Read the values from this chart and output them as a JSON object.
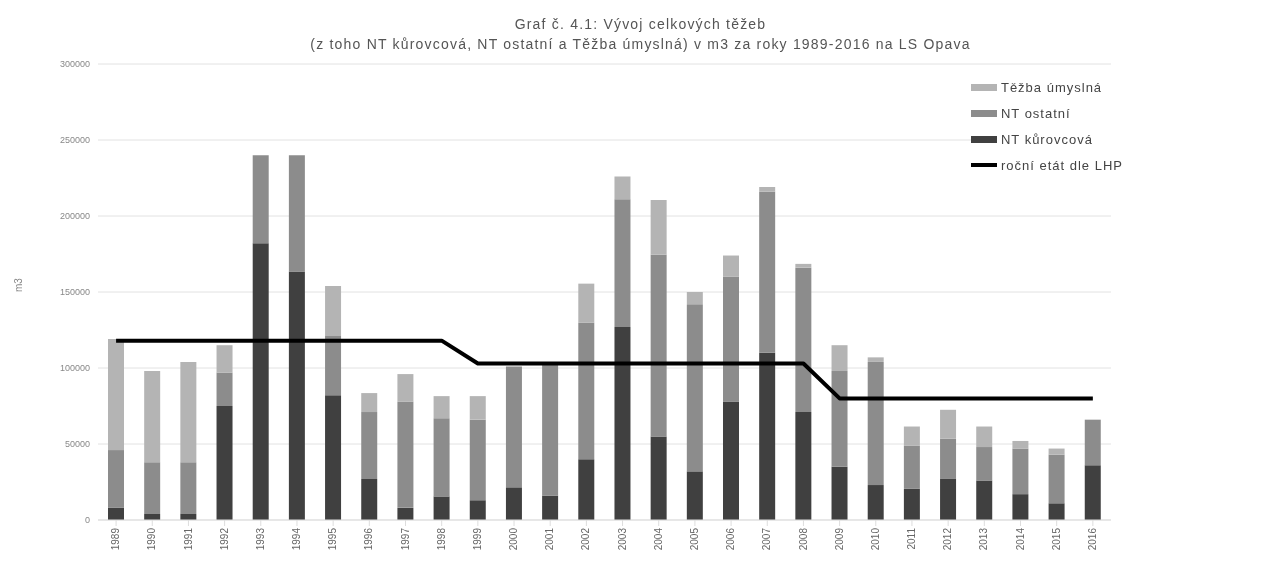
{
  "chart_data": {
    "type": "bar",
    "stacked": true,
    "title": "Graf č. 4.1: Vývoj celkových těžeb",
    "subtitle": "(z toho NT kůrovcová, NT ostatní a Těžba úmyslná) v m3 za roky 1989-2016 na LS Opava",
    "ylabel": "m3",
    "categories": [
      "1989",
      "1990",
      "1991",
      "1992",
      "1993",
      "1994",
      "1995",
      "1996",
      "1997",
      "1998",
      "1999",
      "2000",
      "2001",
      "2002",
      "2003",
      "2004",
      "2005",
      "2006",
      "2007",
      "2008",
      "2009",
      "2010",
      "2011",
      "2012",
      "2013",
      "2014",
      "2015",
      "2016"
    ],
    "series": [
      {
        "name": "NT kůrovcová",
        "color": "#404040",
        "values": [
          8000,
          4000,
          4000,
          75000,
          182000,
          163500,
          82000,
          27000,
          8000,
          15500,
          13000,
          21500,
          16000,
          40000,
          127000,
          55000,
          32000,
          78000,
          110000,
          71000,
          35000,
          23000,
          20500,
          27000,
          26000,
          17000,
          11000,
          36000
        ]
      },
      {
        "name": "NT ostatní",
        "color": "#8c8c8c",
        "values": [
          38000,
          34000,
          34000,
          22000,
          58000,
          76500,
          39000,
          44000,
          70000,
          51500,
          53000,
          79500,
          86000,
          90000,
          84000,
          119500,
          110000,
          82000,
          106000,
          95000,
          63000,
          81000,
          28500,
          26500,
          22000,
          30000,
          32000,
          30000
        ]
      },
      {
        "name": "Těžba úmyslná",
        "color": "#b4b4b4",
        "values": [
          73000,
          60000,
          66000,
          18000,
          0,
          0,
          33000,
          12500,
          18000,
          14500,
          15500,
          null,
          null,
          25500,
          15000,
          36000,
          8000,
          14000,
          3000,
          2500,
          17000,
          3000,
          12500,
          19000,
          13500,
          5000,
          4000,
          null
        ]
      },
      {
        "name": "roční etát dle LHP",
        "type": "line",
        "color": "#000000",
        "values": [
          118000,
          118000,
          118000,
          118000,
          118000,
          118000,
          118000,
          118000,
          118000,
          118000,
          103000,
          103000,
          103000,
          103000,
          103000,
          103000,
          103000,
          103000,
          103000,
          103000,
          80000,
          80000,
          80000,
          80000,
          80000,
          80000,
          80000,
          80000
        ]
      }
    ],
    "ylim": [
      0,
      300000
    ],
    "yticks": [
      0,
      50000,
      100000,
      150000,
      200000,
      250000,
      300000
    ],
    "grid": "y",
    "legend": "top right",
    "marker": "none"
  }
}
